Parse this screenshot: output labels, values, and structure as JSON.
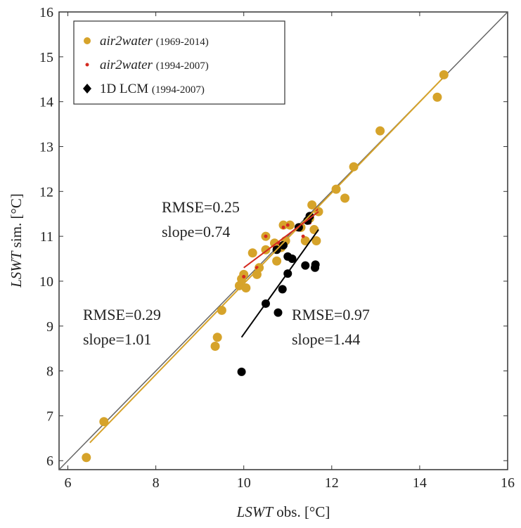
{
  "chart_data": {
    "type": "scatter",
    "xlabel": {
      "variable": "LSWT",
      "text": "obs. [°C]"
    },
    "ylabel": {
      "variable": "LSWT",
      "text": "sim. [°C]"
    },
    "xlim": [
      5.8,
      16
    ],
    "ylim": [
      5.8,
      16
    ],
    "xticks": [
      6,
      8,
      10,
      12,
      14,
      16
    ],
    "yticks": [
      6,
      7,
      8,
      9,
      10,
      11,
      12,
      13,
      14,
      15,
      16
    ],
    "legend": "upper left",
    "series": [
      {
        "name": "air2water",
        "period": "(1969-2014)",
        "color": "#d6a32a",
        "italic": true,
        "size": 6.5,
        "x": [
          6.42,
          6.82,
          9.35,
          9.4,
          9.5,
          9.9,
          10.05,
          10.2,
          10.3,
          10.35,
          10.5,
          10.5,
          10.7,
          10.75,
          10.85,
          10.9,
          10.95,
          11.05,
          11.3,
          11.4,
          11.5,
          11.55,
          11.6,
          11.65,
          11.7,
          12.1,
          12.3,
          12.5,
          13.1,
          14.4,
          14.55,
          10.0,
          9.95
        ],
        "y": [
          6.07,
          6.87,
          8.55,
          8.75,
          9.35,
          9.9,
          9.85,
          10.63,
          10.15,
          10.3,
          10.7,
          11.0,
          10.85,
          10.45,
          10.75,
          11.25,
          10.9,
          11.25,
          11.2,
          10.9,
          11.4,
          11.7,
          11.15,
          10.9,
          11.55,
          12.05,
          11.85,
          12.55,
          13.35,
          14.1,
          14.6,
          10.15,
          10.05
        ],
        "fit": {
          "x": [
            6.5,
            14.5
          ],
          "y": [
            6.4,
            14.5
          ]
        },
        "annotation": [
          "RMSE=0.29",
          "slope=1.01"
        ]
      },
      {
        "name": "air2water",
        "period": "(1994-2007)",
        "color": "#d42a20",
        "italic": true,
        "size": 2.5,
        "x": [
          10.0,
          10.5,
          10.9,
          11.0,
          11.35,
          11.5,
          11.65,
          10.3,
          10.8,
          11.2,
          10.7
        ],
        "y": [
          10.1,
          11.0,
          11.2,
          11.25,
          11.0,
          11.3,
          11.6,
          10.3,
          10.85,
          11.15,
          10.75
        ],
        "fit": {
          "x": [
            10.0,
            11.7
          ],
          "y": [
            10.3,
            11.55
          ]
        },
        "annotation": [
          "RMSE=0.25",
          "slope=0.74"
        ]
      },
      {
        "name": "1D LCM",
        "period": "(1994-2007)",
        "color": "#000000",
        "italic": false,
        "size": 6,
        "x": [
          9.95,
          10.5,
          10.78,
          10.88,
          11.0,
          11.1,
          11.4,
          11.62,
          11.63,
          10.75,
          10.9,
          11.0,
          11.25,
          11.5,
          11.45
        ],
        "y": [
          7.98,
          9.5,
          9.3,
          9.82,
          10.17,
          10.5,
          10.35,
          10.3,
          10.37,
          10.7,
          10.8,
          10.55,
          11.2,
          11.45,
          11.35
        ],
        "fit": {
          "x": [
            9.95,
            11.7
          ],
          "y": [
            8.75,
            11.15
          ]
        },
        "annotation": [
          "RMSE=0.97",
          "slope=1.44"
        ]
      }
    ]
  }
}
